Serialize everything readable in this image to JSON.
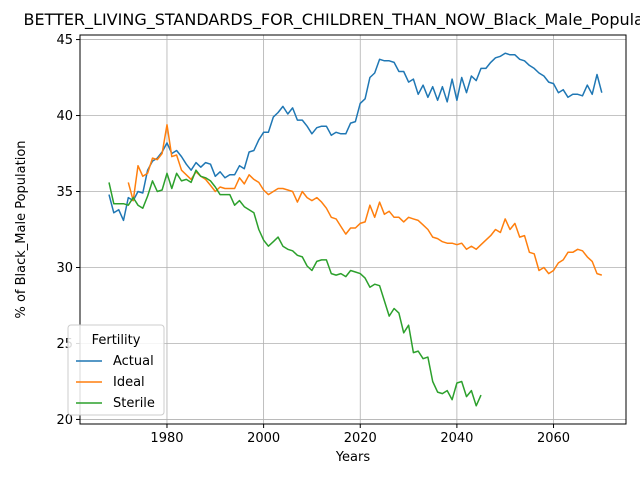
{
  "chart_data": {
    "type": "line",
    "title": "BETTER_LIVING_STANDARDS_FOR_CHILDREN_THAN_NOW_Black_Male_Population_",
    "xlabel": "Years",
    "ylabel": "% of Black_Male Population",
    "xlim": [
      1962,
      2075
    ],
    "ylim": [
      19.7,
      45.3
    ],
    "xticks": [
      1980,
      2000,
      2020,
      2040,
      2060
    ],
    "yticks": [
      20,
      25,
      30,
      35,
      40,
      45
    ],
    "grid": true,
    "legend": {
      "title": "Fertility",
      "position": "lower-left"
    },
    "series": [
      {
        "name": "Actual",
        "color": "#1f77b4",
        "x": [
          1968,
          1969,
          1970,
          1971,
          1972,
          1973,
          1974,
          1975,
          1976,
          1977,
          1978,
          1979,
          1980,
          1981,
          1982,
          1983,
          1984,
          1985,
          1986,
          1987,
          1988,
          1989,
          1990,
          1991,
          1992,
          1993,
          1994,
          1995,
          1996,
          1997,
          1998,
          1999,
          2000,
          2001,
          2002,
          2003,
          2004,
          2005,
          2006,
          2007,
          2008,
          2009,
          2010,
          2011,
          2012,
          2013,
          2014,
          2015,
          2016,
          2017,
          2018,
          2019,
          2020,
          2021,
          2022,
          2023,
          2024,
          2025,
          2026,
          2027,
          2028,
          2029,
          2030,
          2031,
          2032,
          2033,
          2034,
          2035,
          2036,
          2037,
          2038,
          2039,
          2040,
          2041,
          2042,
          2043,
          2044,
          2045,
          2046,
          2047,
          2048,
          2049,
          2050,
          2051,
          2052,
          2053,
          2054,
          2055,
          2056,
          2057,
          2058,
          2059,
          2060,
          2061,
          2062,
          2063,
          2064,
          2065,
          2066,
          2067,
          2068,
          2069,
          2070
        ],
        "y": [
          34.8,
          33.6,
          33.8,
          33.1,
          34.6,
          34.4,
          35.0,
          34.9,
          36.4,
          37.0,
          37.2,
          37.6,
          38.2,
          37.5,
          37.7,
          37.3,
          36.8,
          36.4,
          36.9,
          36.6,
          36.9,
          36.8,
          36.0,
          36.3,
          35.9,
          36.1,
          36.1,
          36.7,
          36.5,
          37.6,
          37.7,
          38.4,
          38.9,
          38.9,
          39.9,
          40.2,
          40.6,
          40.1,
          40.5,
          39.7,
          39.7,
          39.3,
          38.8,
          39.2,
          39.3,
          39.3,
          38.7,
          38.9,
          38.8,
          38.8,
          39.5,
          39.6,
          40.8,
          41.1,
          42.5,
          42.8,
          43.7,
          43.6,
          43.6,
          43.5,
          42.9,
          42.9,
          42.2,
          42.4,
          41.4,
          42.0,
          41.2,
          41.9,
          41.0,
          41.9,
          40.9,
          42.4,
          41.0,
          42.5,
          41.5,
          42.6,
          42.3,
          43.1,
          43.1,
          43.5,
          43.8,
          43.9,
          44.1,
          44.0,
          44.0,
          43.7,
          43.6,
          43.3,
          43.1,
          42.8,
          42.6,
          42.2,
          42.1,
          41.5,
          41.7,
          41.2,
          41.4,
          41.4,
          41.3,
          42.0,
          41.4,
          42.7,
          41.5
        ]
      },
      {
        "name": "Ideal",
        "color": "#ff7f0e",
        "x": [
          1972,
          1973,
          1974,
          1975,
          1976,
          1977,
          1978,
          1979,
          1980,
          1981,
          1982,
          1983,
          1984,
          1985,
          1986,
          1987,
          1988,
          1989,
          1990,
          1991,
          1992,
          1993,
          1994,
          1995,
          1996,
          1997,
          1998,
          1999,
          2000,
          2001,
          2002,
          2003,
          2004,
          2005,
          2006,
          2007,
          2008,
          2009,
          2010,
          2011,
          2012,
          2013,
          2014,
          2015,
          2016,
          2017,
          2018,
          2019,
          2020,
          2021,
          2022,
          2023,
          2024,
          2025,
          2026,
          2027,
          2028,
          2029,
          2030,
          2031,
          2032,
          2033,
          2034,
          2035,
          2036,
          2037,
          2038,
          2039,
          2040,
          2041,
          2042,
          2043,
          2044,
          2045,
          2046,
          2047,
          2048,
          2049,
          2050,
          2051,
          2052,
          2053,
          2054,
          2055,
          2056,
          2057,
          2058,
          2059,
          2060,
          2061,
          2062,
          2063,
          2064,
          2065,
          2066,
          2067,
          2068,
          2069,
          2070
        ],
        "y": [
          35.6,
          34.4,
          36.7,
          36.0,
          36.2,
          37.2,
          37.1,
          37.5,
          39.4,
          37.3,
          37.4,
          36.4,
          36.1,
          35.8,
          36.3,
          36.0,
          35.8,
          35.4,
          35.0,
          35.3,
          35.2,
          35.2,
          35.2,
          35.9,
          35.5,
          36.1,
          35.8,
          35.6,
          35.1,
          34.8,
          35.0,
          35.2,
          35.2,
          35.1,
          35.0,
          34.3,
          35.0,
          34.6,
          34.4,
          34.6,
          34.3,
          33.9,
          33.3,
          33.2,
          32.7,
          32.2,
          32.6,
          32.6,
          32.9,
          33.0,
          34.1,
          33.3,
          34.3,
          33.5,
          33.7,
          33.3,
          33.3,
          33.0,
          33.3,
          33.2,
          33.1,
          32.8,
          32.5,
          32.0,
          31.9,
          31.7,
          31.6,
          31.6,
          31.5,
          31.6,
          31.2,
          31.4,
          31.2,
          31.5,
          31.8,
          32.1,
          32.5,
          32.3,
          33.2,
          32.5,
          32.9,
          32.0,
          32.1,
          31.0,
          30.9,
          29.8,
          30.0,
          29.6,
          29.8,
          30.3,
          30.5,
          31.0,
          31.0,
          31.2,
          31.1,
          30.7,
          30.4,
          29.6,
          29.5
        ]
      },
      {
        "name": "Sterile",
        "color": "#2ca02c",
        "x": [
          1968,
          1969,
          1970,
          1971,
          1972,
          1973,
          1974,
          1975,
          1976,
          1977,
          1978,
          1979,
          1980,
          1981,
          1982,
          1983,
          1984,
          1985,
          1986,
          1987,
          1988,
          1989,
          1990,
          1991,
          1992,
          1993,
          1994,
          1995,
          1996,
          1997,
          1998,
          1999,
          2000,
          2001,
          2002,
          2003,
          2004,
          2005,
          2006,
          2007,
          2008,
          2009,
          2010,
          2011,
          2012,
          2013,
          2014,
          2015,
          2016,
          2017,
          2018,
          2019,
          2020,
          2021,
          2022,
          2023,
          2024,
          2025,
          2026,
          2027,
          2028,
          2029,
          2030,
          2031,
          2032,
          2033,
          2034,
          2035,
          2036,
          2037,
          2038,
          2039,
          2040,
          2041,
          2042,
          2043,
          2044,
          2045
        ],
        "y": [
          35.6,
          34.2,
          34.2,
          34.2,
          34.1,
          34.6,
          34.1,
          33.9,
          34.7,
          35.7,
          35.0,
          35.1,
          36.2,
          35.2,
          36.2,
          35.7,
          35.8,
          35.6,
          36.4,
          36.0,
          35.9,
          35.7,
          35.3,
          34.8,
          34.8,
          34.8,
          34.1,
          34.4,
          34.0,
          33.8,
          33.6,
          32.5,
          31.8,
          31.4,
          31.7,
          32.0,
          31.4,
          31.2,
          31.1,
          30.8,
          30.7,
          30.1,
          29.8,
          30.4,
          30.5,
          30.5,
          29.6,
          29.5,
          29.6,
          29.4,
          29.8,
          29.7,
          29.6,
          29.3,
          28.7,
          28.9,
          28.8,
          27.8,
          26.8,
          27.3,
          27.0,
          25.7,
          26.2,
          24.4,
          24.5,
          24.0,
          24.1,
          22.5,
          21.8,
          21.7,
          21.9,
          21.3,
          22.4,
          22.5,
          21.5,
          21.9,
          20.9,
          21.6
        ]
      }
    ]
  }
}
